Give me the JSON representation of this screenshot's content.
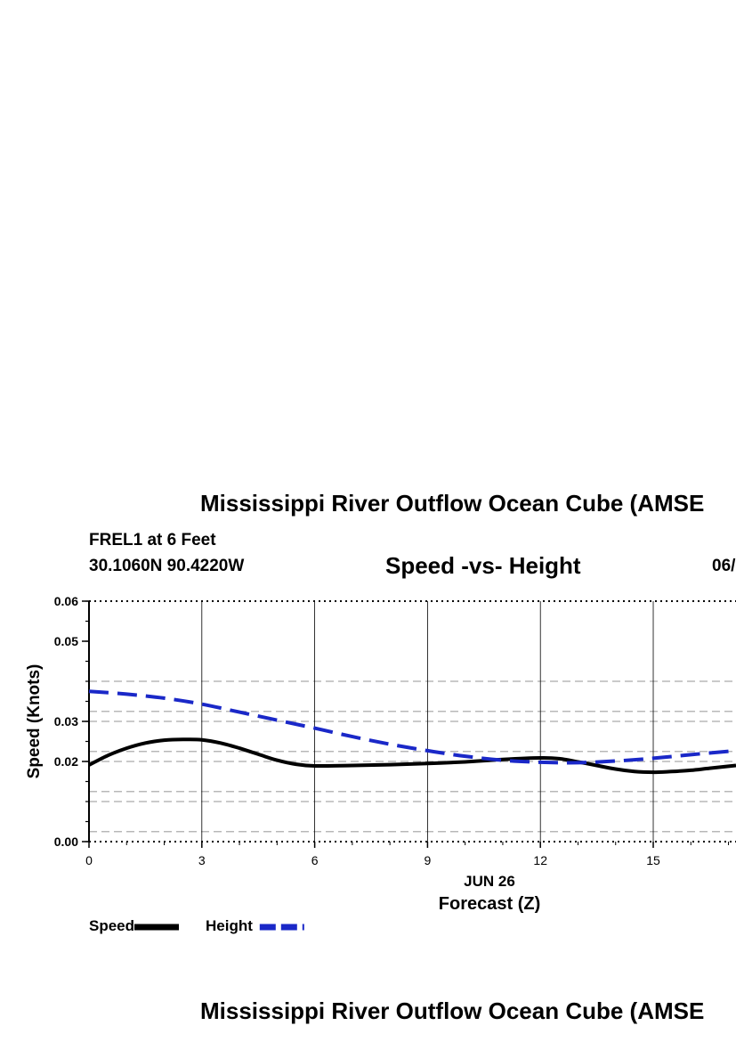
{
  "header": {
    "title": "Mississippi River Outflow Ocean Cube (AMSE",
    "station": "FREL1 at 6 Feet",
    "coordinates": "30.1060N  90.4220W",
    "date_partial": "06/"
  },
  "footer": {
    "next_title": "Mississippi River Outflow Ocean Cube (AMSE"
  },
  "chart_data": {
    "type": "line",
    "title": "Speed -vs- Height",
    "xlabel": "Forecast (Z)",
    "x_sublabel": "JUN 26",
    "ylabel": "Speed (Knots)",
    "xlim": [
      0,
      17.2
    ],
    "ylim": [
      0.0,
      0.06
    ],
    "x_ticks": [
      0,
      3,
      6,
      9,
      12,
      15
    ],
    "x_tick_labels": [
      "0",
      "3",
      "6",
      "9",
      "12",
      "15"
    ],
    "y_tick_positions": [
      0.0,
      0.02,
      0.03,
      0.05,
      0.06
    ],
    "y_tick_labels": [
      "0.00",
      "0.02",
      "0.03",
      "0.05",
      "0.06"
    ],
    "grid_vertical": [
      3,
      6,
      9,
      12,
      15
    ],
    "grid_horizontal_dashed": [
      0.0025,
      0.01,
      0.0125,
      0.02,
      0.0225,
      0.03,
      0.0325,
      0.04
    ],
    "series": [
      {
        "name": "Speed",
        "color": "#000000",
        "dash": "solid",
        "x": [
          0,
          0.5,
          1,
          1.5,
          2,
          2.5,
          3,
          3.5,
          4,
          4.5,
          5,
          5.5,
          6,
          7,
          8,
          9,
          10,
          11,
          12,
          12.5,
          13,
          13.5,
          14,
          14.5,
          15,
          15.5,
          16,
          16.5,
          17.2
        ],
        "y": [
          0.0191,
          0.0215,
          0.0233,
          0.0246,
          0.0253,
          0.0255,
          0.0254,
          0.0246,
          0.0233,
          0.0218,
          0.0203,
          0.0193,
          0.0189,
          0.019,
          0.0192,
          0.0195,
          0.0199,
          0.0205,
          0.0209,
          0.0207,
          0.0199,
          0.019,
          0.0181,
          0.0175,
          0.0173,
          0.0175,
          0.0178,
          0.0183,
          0.019
        ]
      },
      {
        "name": "Height",
        "color": "#1a28c8",
        "dash": "dashed",
        "x": [
          0,
          1,
          2,
          3,
          4,
          5,
          6,
          7,
          8,
          9,
          10,
          11,
          12,
          13,
          14,
          15,
          16,
          17.2
        ],
        "y": [
          0.0375,
          0.0368,
          0.0358,
          0.0343,
          0.0323,
          0.0303,
          0.0283,
          0.0262,
          0.0243,
          0.0227,
          0.0213,
          0.0203,
          0.0198,
          0.0197,
          0.0201,
          0.0208,
          0.0217,
          0.0227
        ]
      }
    ],
    "legend": [
      {
        "label": "Speed",
        "color": "#000000",
        "dash": "solid"
      },
      {
        "label": "Height",
        "color": "#1a28c8",
        "dash": "dashed"
      }
    ],
    "legend_position": "bottom-left"
  }
}
